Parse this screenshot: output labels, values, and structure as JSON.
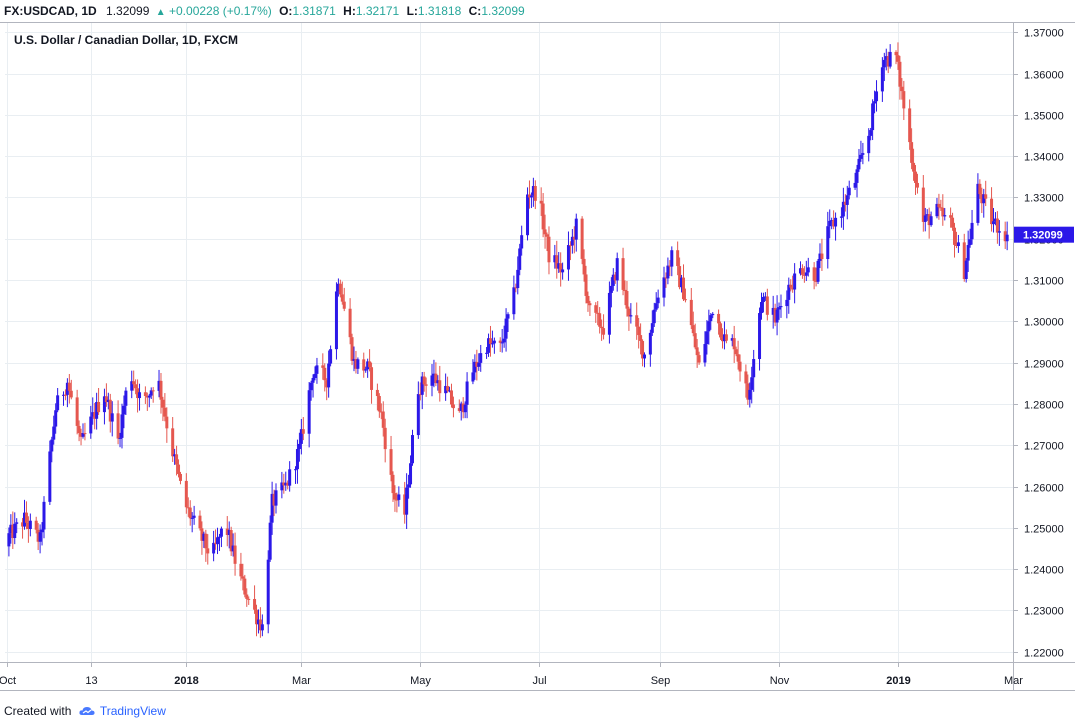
{
  "header": {
    "symbol": "FX:USDCAD, 1D",
    "last": "1.32099",
    "change": "+0.00228 (+0.17%)",
    "o_label": "O:",
    "o_value": "1.31871",
    "h_label": "H:",
    "h_value": "1.32171",
    "l_label": "L:",
    "l_value": "1.31818",
    "c_label": "C:",
    "c_value": "1.32099"
  },
  "footer": {
    "created_with": "Created with",
    "brand": "TradingView"
  },
  "colors": {
    "up": "#2b18e8",
    "down": "#e5574f",
    "grid": "#e9eef2",
    "axis": "#b2b5be",
    "price_tag": "#2b18e8"
  },
  "chart_data": {
    "type": "candlestick",
    "title": "U.S. Dollar / Canadian Dollar, 1D, FXCM",
    "y_ticks": [
      "1.22000",
      "1.23000",
      "1.24000",
      "1.25000",
      "1.26000",
      "1.27000",
      "1.28000",
      "1.29000",
      "1.30000",
      "1.31000",
      "1.32000",
      "1.33000",
      "1.34000",
      "1.35000",
      "1.36000",
      "1.37000"
    ],
    "ylim": [
      1.2175,
      1.3725
    ],
    "x_ticks": [
      "Oct",
      "13",
      "2018",
      "Mar",
      "May",
      "Jul",
      "Sep",
      "Nov",
      "2019",
      "Mar"
    ],
    "bold_x_ticks": [
      "2018",
      "2019"
    ],
    "last_price": "1.32099",
    "close_path": [
      [
        "2017-10-01",
        1.2475
      ],
      [
        "2017-10-10",
        1.252
      ],
      [
        "2017-10-18",
        1.2468
      ],
      [
        "2017-10-26",
        1.279
      ],
      [
        "2017-11-01",
        1.2855
      ],
      [
        "2017-11-08",
        1.27
      ],
      [
        "2017-11-15",
        1.2778
      ],
      [
        "2017-11-20",
        1.283
      ],
      [
        "2017-11-27",
        1.2712
      ],
      [
        "2017-12-03",
        1.288
      ],
      [
        "2017-12-10",
        1.2795
      ],
      [
        "2017-12-17",
        1.287
      ],
      [
        "2017-12-24",
        1.2705
      ],
      [
        "2017-12-31",
        1.256
      ],
      [
        "2018-01-07",
        1.249
      ],
      [
        "2018-01-14",
        1.243
      ],
      [
        "2018-01-21",
        1.251
      ],
      [
        "2018-01-28",
        1.2385
      ],
      [
        "2018-02-04",
        1.2305
      ],
      [
        "2018-02-09",
        1.226
      ],
      [
        "2018-02-14",
        1.256
      ],
      [
        "2018-02-21",
        1.26
      ],
      [
        "2018-02-28",
        1.269
      ],
      [
        "2018-03-07",
        1.288
      ],
      [
        "2018-03-14",
        1.286
      ],
      [
        "2018-03-20",
        1.311
      ],
      [
        "2018-03-28",
        1.29
      ],
      [
        "2018-04-04",
        1.2885
      ],
      [
        "2018-04-11",
        1.2775
      ],
      [
        "2018-04-17",
        1.2585
      ],
      [
        "2018-04-23",
        1.2535
      ],
      [
        "2018-04-30",
        1.284
      ],
      [
        "2018-05-07",
        1.287
      ],
      [
        "2018-05-14",
        1.283
      ],
      [
        "2018-05-21",
        1.277
      ],
      [
        "2018-05-28",
        1.288
      ],
      [
        "2018-06-04",
        1.2945
      ],
      [
        "2018-06-11",
        1.2935
      ],
      [
        "2018-06-18",
        1.306
      ],
      [
        "2018-06-25",
        1.331
      ],
      [
        "2018-06-30",
        1.3315
      ],
      [
        "2018-07-06",
        1.316
      ],
      [
        "2018-07-13",
        1.312
      ],
      [
        "2018-07-20",
        1.323
      ],
      [
        "2018-07-27",
        1.302
      ],
      [
        "2018-08-03",
        1.2985
      ],
      [
        "2018-08-10",
        1.314
      ],
      [
        "2018-08-17",
        1.3005
      ],
      [
        "2018-08-24",
        1.292
      ],
      [
        "2018-08-31",
        1.307
      ],
      [
        "2018-09-07",
        1.3155
      ],
      [
        "2018-09-14",
        1.306
      ],
      [
        "2018-09-21",
        1.289
      ],
      [
        "2018-09-28",
        1.3035
      ],
      [
        "2018-10-05",
        1.2945
      ],
      [
        "2018-10-09",
        1.295
      ],
      [
        "2018-10-16",
        1.2815
      ],
      [
        "2018-10-23",
        1.306
      ],
      [
        "2018-10-30",
        1.3005
      ],
      [
        "2018-11-06",
        1.3085
      ],
      [
        "2018-11-13",
        1.313
      ],
      [
        "2018-11-20",
        1.3115
      ],
      [
        "2018-11-27",
        1.3225
      ],
      [
        "2018-12-03",
        1.327
      ],
      [
        "2018-12-10",
        1.334
      ],
      [
        "2018-12-17",
        1.3455
      ],
      [
        "2018-12-24",
        1.3635
      ],
      [
        "2018-12-31",
        1.364
      ],
      [
        "2019-01-07",
        1.343
      ],
      [
        "2019-01-14",
        1.324
      ],
      [
        "2019-01-21",
        1.3265
      ],
      [
        "2019-01-28",
        1.3235
      ],
      [
        "2019-02-04",
        1.3125
      ],
      [
        "2019-02-11",
        1.332
      ],
      [
        "2019-02-18",
        1.3245
      ],
      [
        "2019-02-26",
        1.321
      ]
    ]
  }
}
